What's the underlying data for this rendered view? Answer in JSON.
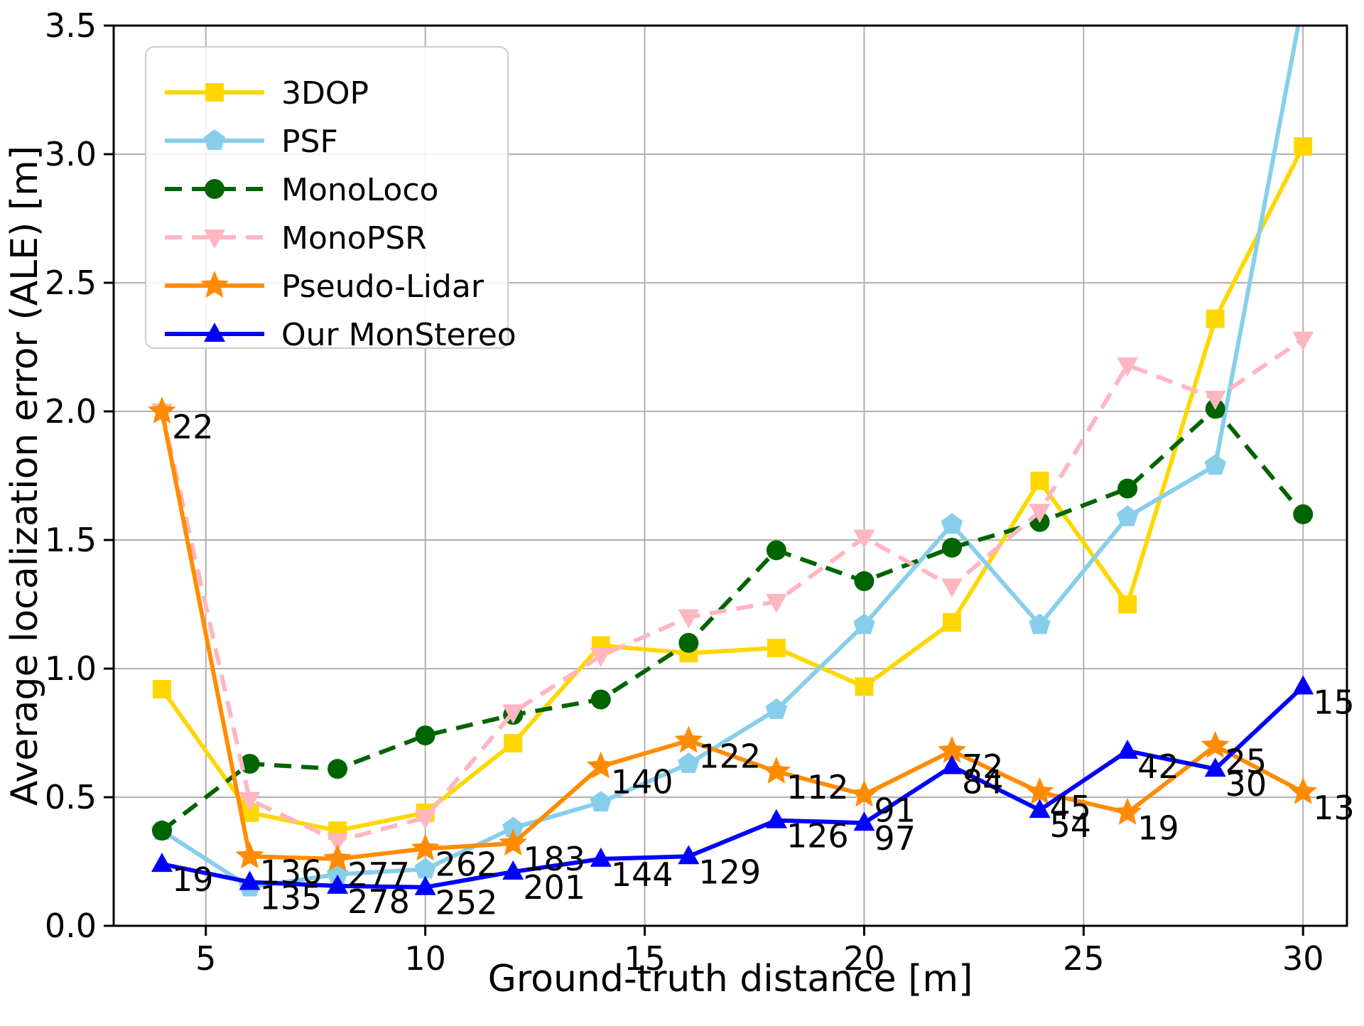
{
  "figure": {
    "kind": "matplotlib-style line chart",
    "background": "#ffffff"
  },
  "chart_data": {
    "type": "line",
    "x": [
      4,
      6,
      8,
      10,
      12,
      14,
      16,
      18,
      20,
      22,
      24,
      26,
      28,
      30
    ],
    "series": [
      {
        "name": "3DOP",
        "color": "#FFD700",
        "linestyle": "solid",
        "marker": "square",
        "values": [
          0.92,
          0.44,
          0.37,
          0.44,
          0.71,
          1.09,
          1.06,
          1.08,
          0.93,
          1.18,
          1.73,
          1.25,
          2.36,
          3.03
        ]
      },
      {
        "name": "PSF",
        "color": "#87CEEB",
        "linestyle": "solid",
        "marker": "pentagon",
        "values": [
          0.37,
          0.15,
          0.2,
          0.22,
          0.38,
          0.48,
          0.63,
          0.84,
          1.17,
          1.56,
          1.17,
          1.59,
          1.79,
          3.6
        ]
      },
      {
        "name": "MonoLoco",
        "color": "#006400",
        "linestyle": "dashed",
        "marker": "circle",
        "values": [
          0.37,
          0.63,
          0.61,
          0.74,
          0.82,
          0.88,
          1.1,
          1.46,
          1.34,
          1.47,
          1.57,
          1.7,
          2.01,
          1.6
        ]
      },
      {
        "name": "MonoPSR",
        "color": "#FFB6C1",
        "linestyle": "dashed",
        "marker": "triangle-down",
        "values": [
          2.0,
          0.49,
          0.33,
          0.42,
          0.83,
          1.05,
          1.2,
          1.26,
          1.51,
          1.32,
          1.61,
          2.18,
          2.05,
          2.28
        ]
      },
      {
        "name": "Pseudo-Lidar",
        "color": "#FF8C00",
        "linestyle": "solid",
        "marker": "star",
        "values": [
          2.0,
          0.27,
          0.26,
          0.3,
          0.32,
          0.62,
          0.72,
          0.6,
          0.51,
          0.68,
          0.52,
          0.44,
          0.7,
          0.52
        ]
      },
      {
        "name": "Our MonStereo",
        "color": "#0000FF",
        "linestyle": "solid",
        "marker": "triangle-up",
        "values": [
          0.24,
          0.17,
          0.155,
          0.15,
          0.21,
          0.26,
          0.27,
          0.41,
          0.4,
          0.62,
          0.45,
          0.68,
          0.61,
          0.93
        ]
      }
    ],
    "point_annotations": [
      {
        "series": "Pseudo-Lidar",
        "labels": [
          "22",
          "136",
          "277",
          "262",
          "183",
          "140",
          "122",
          "112",
          "91",
          "72",
          "45",
          "19",
          "25",
          "13"
        ]
      },
      {
        "series": "Our MonStereo",
        "labels": [
          "19",
          "135",
          "278",
          "252",
          "201",
          "144",
          "129",
          "126",
          "97",
          "84",
          "54",
          "42",
          "30",
          "15"
        ]
      }
    ],
    "title": "",
    "xlabel": "Ground-truth distance [m]",
    "ylabel": "Average localization error (ALE) [m]",
    "xticks": [
      "5",
      "10",
      "15",
      "20",
      "25",
      "30"
    ],
    "xtick_values": [
      5,
      10,
      15,
      20,
      25,
      30
    ],
    "yticks": [
      "0.0",
      "0.5",
      "1.0",
      "1.5",
      "2.0",
      "2.5",
      "3.0",
      "3.5"
    ],
    "ytick_values": [
      0,
      0.5,
      1.0,
      1.5,
      2.0,
      2.5,
      3.0,
      3.5
    ],
    "xlim": [
      2.9,
      31.0
    ],
    "ylim": [
      0,
      3.5
    ],
    "grid": true,
    "grid_color": "#b0b0b0",
    "axis_color": "#000000",
    "legend": {
      "position": "upper-left",
      "border_color": "#cccccc",
      "background": "#ffffff",
      "entries": [
        "3DOP",
        "PSF",
        "MonoLoco",
        "MonoPSR",
        "Pseudo-Lidar",
        "Our MonStereo"
      ]
    }
  }
}
